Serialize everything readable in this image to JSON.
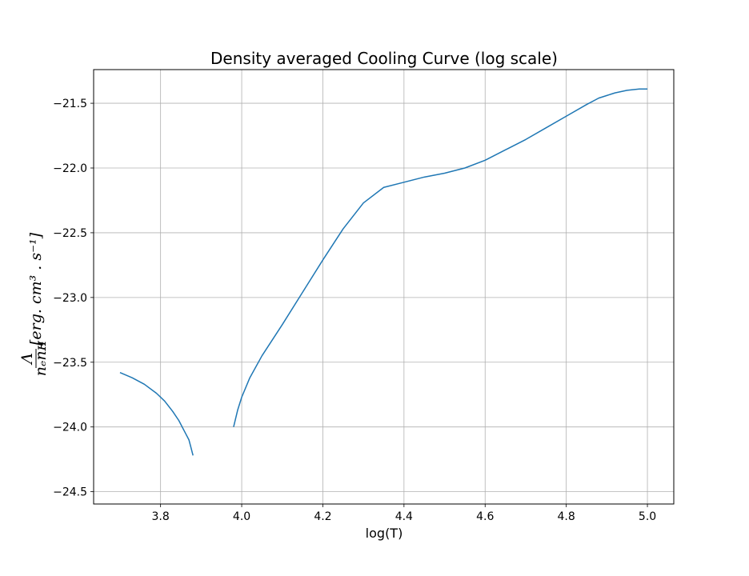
{
  "chart_data": {
    "type": "line",
    "title": "Density averaged Cooling Curve (log scale)",
    "xlabel": "log(T)",
    "ylabel": {
      "prefix": "Λ",
      "denominator": "nₑnʜ",
      "units": "[erg. cm³ . s⁻¹]"
    },
    "xlim": [
      3.635,
      5.065
    ],
    "ylim": [
      -24.595,
      -21.24
    ],
    "x_ticks": [
      3.8,
      4.0,
      4.2,
      4.4,
      4.6,
      4.8,
      5.0
    ],
    "x_tick_labels": [
      "3.8",
      "4.0",
      "4.2",
      "4.4",
      "4.6",
      "4.8",
      "5.0"
    ],
    "y_ticks": [
      -21.5,
      -22.0,
      -22.5,
      -23.0,
      -23.5,
      -24.0,
      -24.5
    ],
    "y_tick_labels": [
      "−21.5",
      "−22.0",
      "−22.5",
      "−23.0",
      "−23.5",
      "−24.0",
      "−24.5"
    ],
    "grid": true,
    "line_color": "#1f77b4",
    "series": [
      {
        "segments": [
          {
            "x": [
              3.7,
              3.73,
              3.76,
              3.79,
              3.81,
              3.83,
              3.845,
              3.86,
              3.87,
              3.875,
              3.88
            ],
            "y": [
              -23.58,
              -23.62,
              -23.67,
              -23.74,
              -23.8,
              -23.88,
              -23.95,
              -24.04,
              -24.1,
              -24.16,
              -24.22
            ]
          },
          {
            "x": [
              3.98,
              3.99,
              4.0,
              4.02,
              4.05,
              4.1,
              4.15,
              4.2,
              4.25,
              4.3,
              4.35,
              4.4,
              4.45,
              4.5,
              4.55,
              4.6,
              4.65,
              4.7,
              4.75,
              4.8,
              4.85,
              4.88,
              4.9,
              4.92,
              4.95,
              4.98,
              5.0
            ],
            "y": [
              -24.0,
              -23.87,
              -23.77,
              -23.62,
              -23.45,
              -23.21,
              -22.96,
              -22.71,
              -22.47,
              -22.27,
              -22.15,
              -22.11,
              -22.07,
              -22.04,
              -22.0,
              -21.94,
              -21.86,
              -21.78,
              -21.69,
              -21.6,
              -21.51,
              -21.46,
              -21.44,
              -21.42,
              -21.4,
              -21.39,
              -21.39
            ]
          }
        ]
      }
    ]
  }
}
